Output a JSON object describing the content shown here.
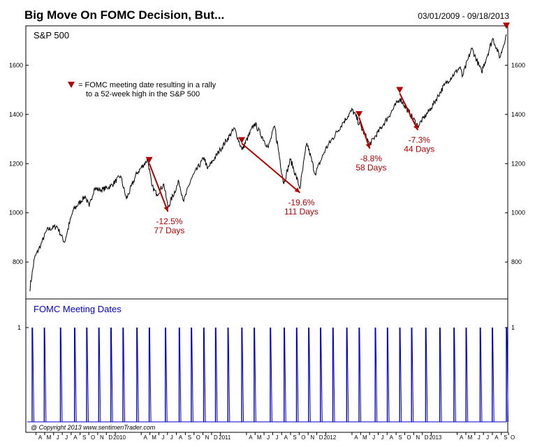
{
  "title": "Big Move On FOMC Decision, But...",
  "date_range": "03/01/2009 - 09/18/2013",
  "copyright": "@ Copyright 2013   www.sentimenTrader.com",
  "colors": {
    "price": "#000000",
    "marker": "#b30000",
    "fomc": "#0000cc",
    "annotation": "#b30000"
  },
  "chart_data": [
    {
      "type": "line",
      "title": "S&P 500",
      "yticks": [
        800,
        1000,
        1200,
        1400,
        1600
      ],
      "ylim": [
        650,
        1760
      ],
      "x_start": "2009-03-01",
      "x_end": "2013-09-18",
      "series": [
        {
          "values": [
            [
              "2009-03-09",
              683
            ],
            [
              "2009-03-26",
              815
            ],
            [
              "2009-04-17",
              870
            ],
            [
              "2009-05-08",
              930
            ],
            [
              "2009-06-12",
              946
            ],
            [
              "2009-07-08",
              880
            ],
            [
              "2009-08-07",
              1010
            ],
            [
              "2009-09-18",
              1068
            ],
            [
              "2009-10-02",
              1025
            ],
            [
              "2009-10-19",
              1098
            ],
            [
              "2009-11-13",
              1093
            ],
            [
              "2009-12-15",
              1108
            ],
            [
              "2010-01-19",
              1150
            ],
            [
              "2010-02-08",
              1056
            ],
            [
              "2010-03-16",
              1160
            ],
            [
              "2010-04-23",
              1217
            ],
            [
              "2010-05-07",
              1110
            ],
            [
              "2010-05-25",
              1074
            ],
            [
              "2010-06-18",
              1117
            ],
            [
              "2010-07-02",
              1022
            ],
            [
              "2010-08-09",
              1127
            ],
            [
              "2010-08-26",
              1047
            ],
            [
              "2010-09-21",
              1139
            ],
            [
              "2010-11-05",
              1225
            ],
            [
              "2010-11-16",
              1178
            ],
            [
              "2010-12-31",
              1258
            ],
            [
              "2011-02-18",
              1343
            ],
            [
              "2011-03-16",
              1256
            ],
            [
              "2011-04-29",
              1364
            ],
            [
              "2011-06-15",
              1265
            ],
            [
              "2011-07-07",
              1353
            ],
            [
              "2011-08-08",
              1119
            ],
            [
              "2011-08-31",
              1218
            ],
            [
              "2011-10-03",
              1099
            ],
            [
              "2011-10-27",
              1284
            ],
            [
              "2011-11-25",
              1158
            ],
            [
              "2011-12-30",
              1257
            ],
            [
              "2012-02-29",
              1366
            ],
            [
              "2012-04-02",
              1419
            ],
            [
              "2012-06-01",
              1278
            ],
            [
              "2012-07-20",
              1362
            ],
            [
              "2012-09-14",
              1465
            ],
            [
              "2012-11-15",
              1353
            ],
            [
              "2012-12-31",
              1426
            ],
            [
              "2013-02-15",
              1519
            ],
            [
              "2013-04-11",
              1593
            ],
            [
              "2013-04-18",
              1553
            ],
            [
              "2013-05-21",
              1669
            ],
            [
              "2013-06-24",
              1573
            ],
            [
              "2013-08-02",
              1709
            ],
            [
              "2013-08-27",
              1631
            ],
            [
              "2013-09-18",
              1725
            ]
          ]
        }
      ],
      "markers": [
        "2010-04-28",
        "2011-03-15",
        "2012-04-25",
        "2012-09-13",
        "2013-09-18"
      ],
      "legend_note": [
        "= FOMC  meeting date resulting in a rally",
        "to a 52-week high in the S&P 500"
      ],
      "drawdowns": [
        {
          "from": "2010-04-28",
          "to": "2010-07-02",
          "pct": "-12.5%",
          "days": "77 Days"
        },
        {
          "from": "2011-03-15",
          "to": "2011-10-03",
          "pct": "-19.6%",
          "days": "111 Days"
        },
        {
          "from": "2012-04-25",
          "to": "2012-06-01",
          "pct": "-8.8%",
          "days": "58 Days"
        },
        {
          "from": "2012-09-13",
          "to": "2012-11-15",
          "pct": "-7.3%",
          "days": "44 Days"
        }
      ]
    },
    {
      "type": "bar",
      "title": "FOMC Meeting Dates",
      "yticks": [
        1
      ],
      "dates": [
        "2009-03-18",
        "2009-04-29",
        "2009-06-24",
        "2009-08-12",
        "2009-09-23",
        "2009-11-04",
        "2009-12-16",
        "2010-01-27",
        "2010-03-16",
        "2010-04-28",
        "2010-06-23",
        "2010-08-10",
        "2010-09-21",
        "2010-11-03",
        "2010-12-14",
        "2011-01-26",
        "2011-03-15",
        "2011-04-27",
        "2011-06-22",
        "2011-08-09",
        "2011-09-21",
        "2011-11-02",
        "2011-12-13",
        "2012-01-25",
        "2012-03-13",
        "2012-04-25",
        "2012-06-20",
        "2012-08-01",
        "2012-09-13",
        "2012-10-24",
        "2012-12-12",
        "2013-01-30",
        "2013-03-20",
        "2013-05-01",
        "2013-06-19",
        "2013-07-31",
        "2013-09-18"
      ]
    }
  ],
  "x_axis": {
    "months": [
      {
        "date": "2009-04-15",
        "label": "A"
      },
      {
        "date": "2009-05-15",
        "label": "M"
      },
      {
        "date": "2009-06-15",
        "label": "J"
      },
      {
        "date": "2009-07-15",
        "label": "J"
      },
      {
        "date": "2009-08-15",
        "label": "A"
      },
      {
        "date": "2009-09-15",
        "label": "S"
      },
      {
        "date": "2009-10-15",
        "label": "O"
      },
      {
        "date": "2009-11-15",
        "label": "N"
      },
      {
        "date": "2009-12-15",
        "label": "D"
      },
      {
        "date": "2010-01-15",
        "label": "2010"
      },
      {
        "date": "2010-04-15",
        "label": "A"
      },
      {
        "date": "2010-05-15",
        "label": "M"
      },
      {
        "date": "2010-06-15",
        "label": "J"
      },
      {
        "date": "2010-07-15",
        "label": "J"
      },
      {
        "date": "2010-08-15",
        "label": "A"
      },
      {
        "date": "2010-09-15",
        "label": "S"
      },
      {
        "date": "2010-10-15",
        "label": "O"
      },
      {
        "date": "2010-11-15",
        "label": "N"
      },
      {
        "date": "2010-12-15",
        "label": "D"
      },
      {
        "date": "2011-01-15",
        "label": "2011"
      },
      {
        "date": "2011-04-15",
        "label": "A"
      },
      {
        "date": "2011-05-15",
        "label": "M"
      },
      {
        "date": "2011-06-15",
        "label": "J"
      },
      {
        "date": "2011-07-15",
        "label": "J"
      },
      {
        "date": "2011-08-15",
        "label": "A"
      },
      {
        "date": "2011-09-15",
        "label": "S"
      },
      {
        "date": "2011-10-15",
        "label": "O"
      },
      {
        "date": "2011-11-15",
        "label": "N"
      },
      {
        "date": "2011-12-15",
        "label": "D"
      },
      {
        "date": "2012-01-15",
        "label": "2012"
      },
      {
        "date": "2012-04-15",
        "label": "A"
      },
      {
        "date": "2012-05-15",
        "label": "M"
      },
      {
        "date": "2012-06-15",
        "label": "J"
      },
      {
        "date": "2012-07-15",
        "label": "J"
      },
      {
        "date": "2012-08-15",
        "label": "A"
      },
      {
        "date": "2012-09-15",
        "label": "S"
      },
      {
        "date": "2012-10-15",
        "label": "O"
      },
      {
        "date": "2012-11-15",
        "label": "N"
      },
      {
        "date": "2012-12-15",
        "label": "D"
      },
      {
        "date": "2013-01-15",
        "label": "2013"
      },
      {
        "date": "2013-04-15",
        "label": "A"
      },
      {
        "date": "2013-05-15",
        "label": "M"
      },
      {
        "date": "2013-06-15",
        "label": "J"
      },
      {
        "date": "2013-07-15",
        "label": "J"
      },
      {
        "date": "2013-08-15",
        "label": "A"
      },
      {
        "date": "2013-09-15",
        "label": "S"
      },
      {
        "date": "2013-10-10",
        "label": "O"
      }
    ]
  }
}
